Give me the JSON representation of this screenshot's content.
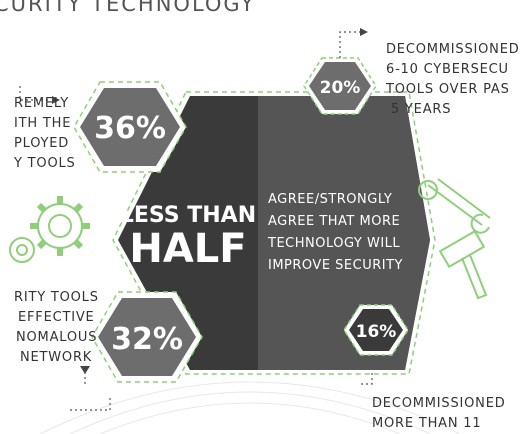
{
  "header": {
    "title": "CURITY TECHNOLOGY"
  },
  "stats": {
    "top_left": {
      "value": "36%"
    },
    "bottom_left": {
      "value": "32%"
    },
    "top_right": {
      "value": "20%"
    },
    "bottom_right": {
      "value": "16%"
    }
  },
  "center": {
    "headline_line1": "LESS THAN",
    "headline_line2": "HALF",
    "body_lines": [
      "AGREE/STRONGLY",
      "AGREE THAT MORE",
      "TECHNOLOGY WILL",
      "IMPROVE SECURITY"
    ]
  },
  "left_top_text": [
    "REMELY",
    "ITH THE",
    "PLOYED",
    "Y TOOLS"
  ],
  "left_bottom_text": [
    "RITY TOOLS",
    "EFFECTIVE",
    "NOMALOUS",
    "NETWORK"
  ],
  "right_top_text": [
    "DECOMMISSIONED",
    "6-10 CYBERSECU",
    "TOOLS OVER PAS",
    " 5 YEARS"
  ],
  "right_bottom_text": [
    "DECOMMISSIONED",
    "MORE THAN 11"
  ],
  "colors": {
    "dark_hex": "#3a3a3a",
    "mid_hex": "#555555",
    "stat_hex": "#6d6d6d",
    "accent_green": "#8fcf7a"
  },
  "icons": [
    "gear-icon",
    "wrench-icon",
    "hammer-icon",
    "dotted-connector-icon"
  ]
}
